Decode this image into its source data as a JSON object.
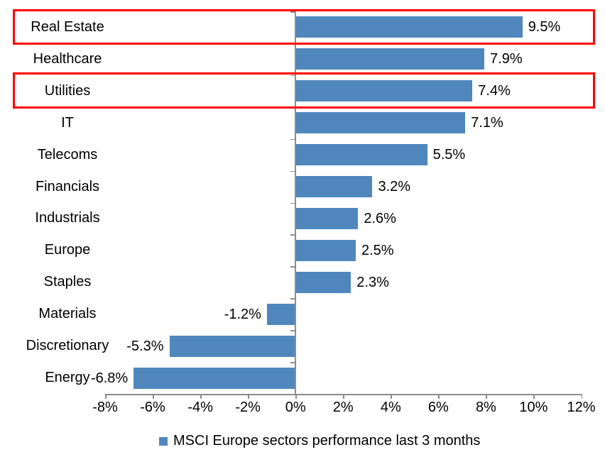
{
  "chart_data": {
    "type": "bar",
    "orientation": "horizontal",
    "title": "",
    "categories": [
      "Real Estate",
      "Healthcare",
      "Utilities",
      "IT",
      "Telecoms",
      "Financials",
      "Industrials",
      "Europe",
      "Staples",
      "Materials",
      "Discretionary",
      "Energy"
    ],
    "values": [
      9.5,
      7.9,
      7.4,
      7.1,
      5.5,
      3.2,
      2.6,
      2.5,
      2.3,
      -1.2,
      -5.3,
      -6.8
    ],
    "value_labels": [
      "9.5%",
      "7.9%",
      "7.4%",
      "7.1%",
      "5.5%",
      "3.2%",
      "2.6%",
      "2.5%",
      "2.3%",
      "-1.2%",
      "-5.3%",
      "-6.8%"
    ],
    "xlim": [
      -8,
      12
    ],
    "x_tick_step": 2,
    "x_tick_labels": [
      "-8%",
      "-6%",
      "-4%",
      "-2%",
      "0%",
      "2%",
      "4%",
      "6%",
      "8%",
      "10%",
      "12%"
    ],
    "grid": false,
    "legend": "MSCI Europe sectors performance last 3 months",
    "legend_position": "bottom",
    "highlighted_categories": [
      "Real Estate",
      "Utilities"
    ],
    "colors": {
      "bar": "#4F87BD",
      "highlight_box": "#FF0000",
      "axis": "#8C8C8C",
      "text": "#000000",
      "background": "#FFFFFF"
    }
  }
}
